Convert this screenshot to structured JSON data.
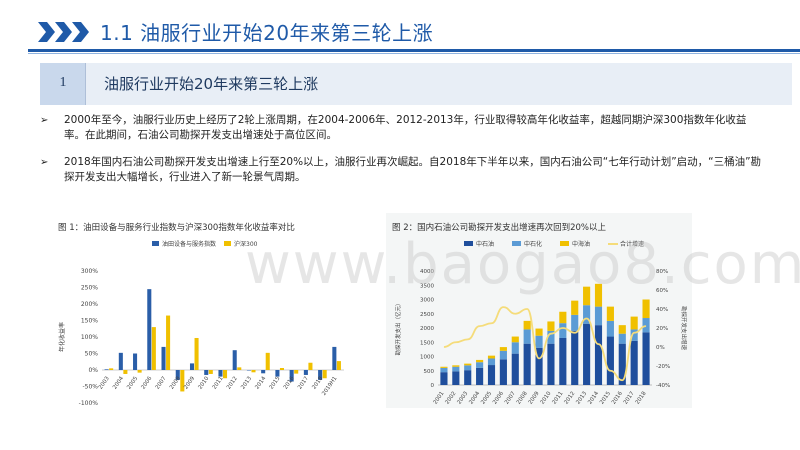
{
  "header": {
    "title": "1.1  油服行业开始20年来第三轮上涨",
    "accent_color": "#1f5aa8"
  },
  "section": {
    "number": "1",
    "title": "油服行业开始20年来第三轮上涨"
  },
  "bullets": [
    {
      "icon": "arrow-bullet-icon",
      "text": "2000年至今，油服行业历史上经历了2轮上涨周期，在2004-2006年、2012-2013年，行业取得较高年化收益率，超越同期沪深300指数年化收益率。在此期间，石油公司勘探开发支出增速处于高位区间。"
    },
    {
      "icon": "arrow-bullet-icon",
      "text": "2018年国内石油公司勘探开发支出增速上行至20%以上，油服行业再次崛起。自2018年下半年以来，国内石油公司“七年行动计划”启动，“三桶油”勘探开发支出大幅增长，行业进入了新一轮景气周期。"
    }
  ],
  "watermark": "www.baogao8.com",
  "chart_data": [
    {
      "type": "bar",
      "title": "图 1：油田设备与服务行业指数与沪深300指数年化收益率对比",
      "ylabel": "年化收益率",
      "ylim": [
        -100,
        300
      ],
      "yticks": [
        "300%",
        "250%",
        "200%",
        "150%",
        "100%",
        "50%",
        "0%",
        "-50%",
        "-100%"
      ],
      "legend_position": "top",
      "categories": [
        "2003",
        "2004",
        "2005",
        "2006",
        "2007",
        "2008",
        "2009",
        "2010",
        "2011",
        "2012",
        "2013",
        "2014",
        "2015",
        "2016",
        "2017",
        "2018",
        "2019H1"
      ],
      "series": [
        {
          "name": "油田设备与服务指数",
          "color": "#2a5ea8",
          "values": [
            2,
            52,
            50,
            245,
            70,
            -30,
            20,
            -15,
            -20,
            60,
            0,
            -10,
            -20,
            -35,
            -15,
            -30,
            70
          ]
        },
        {
          "name": "沪深300",
          "color": "#f0c000",
          "values": [
            5,
            -12,
            -8,
            130,
            165,
            -65,
            97,
            -12,
            -25,
            8,
            -7,
            52,
            6,
            -11,
            22,
            -25,
            27
          ]
        }
      ]
    },
    {
      "type": "bar",
      "title": "图 2：国内石油公司勘探开发支出增速再次回到20%以上",
      "ylabel": "勘探开发支出（亿元）",
      "ylabel_right": "勘探开发支出增速",
      "ylim": [
        0,
        4000
      ],
      "yticks": [
        "4000",
        "3500",
        "3000",
        "2500",
        "2000",
        "1500",
        "1000",
        "500",
        "0"
      ],
      "yticks_right": [
        "80%",
        "60%",
        "40%",
        "20%",
        "0%",
        "-20%",
        "-40%"
      ],
      "legend_position": "top",
      "categories": [
        "2001",
        "2002",
        "2003",
        "2004",
        "2005",
        "2006",
        "2007",
        "2008",
        "2009",
        "2010",
        "2011",
        "2012",
        "2013",
        "2014",
        "2015",
        "2016",
        "2017",
        "2018"
      ],
      "series": [
        {
          "name": "中石油",
          "color": "#1f4e9c",
          "values": [
            450,
            480,
            520,
            600,
            700,
            900,
            1100,
            1450,
            1300,
            1450,
            1650,
            1900,
            2150,
            2100,
            1700,
            1450,
            1550,
            1850
          ]
        },
        {
          "name": "中石化",
          "color": "#5b9bd5",
          "values": [
            150,
            160,
            170,
            200,
            230,
            300,
            400,
            500,
            430,
            450,
            520,
            560,
            650,
            650,
            550,
            350,
            400,
            500
          ]
        },
        {
          "name": "中海油",
          "color": "#f0c000",
          "values": [
            40,
            50,
            60,
            80,
            100,
            130,
            200,
            300,
            250,
            330,
            400,
            500,
            650,
            800,
            500,
            300,
            450,
            650
          ]
        },
        {
          "name": "合计增速",
          "color": "#f5dc7a",
          "type": "line",
          "values": [
            0,
            5,
            8,
            22,
            25,
            42,
            35,
            40,
            -12,
            14,
            20,
            15,
            30,
            3,
            -25,
            -35,
            15,
            22
          ]
        }
      ]
    }
  ]
}
